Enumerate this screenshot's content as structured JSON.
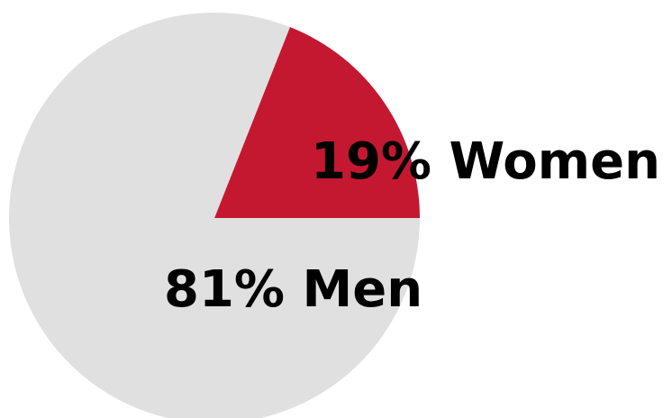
{
  "chart_data": {
    "type": "pie",
    "title": "",
    "slices": [
      {
        "label": "19% Women",
        "value": 19,
        "color": "#c41831"
      },
      {
        "label": "81% Men",
        "value": 81,
        "color": "#e0e0e0"
      }
    ],
    "legend": "none"
  }
}
